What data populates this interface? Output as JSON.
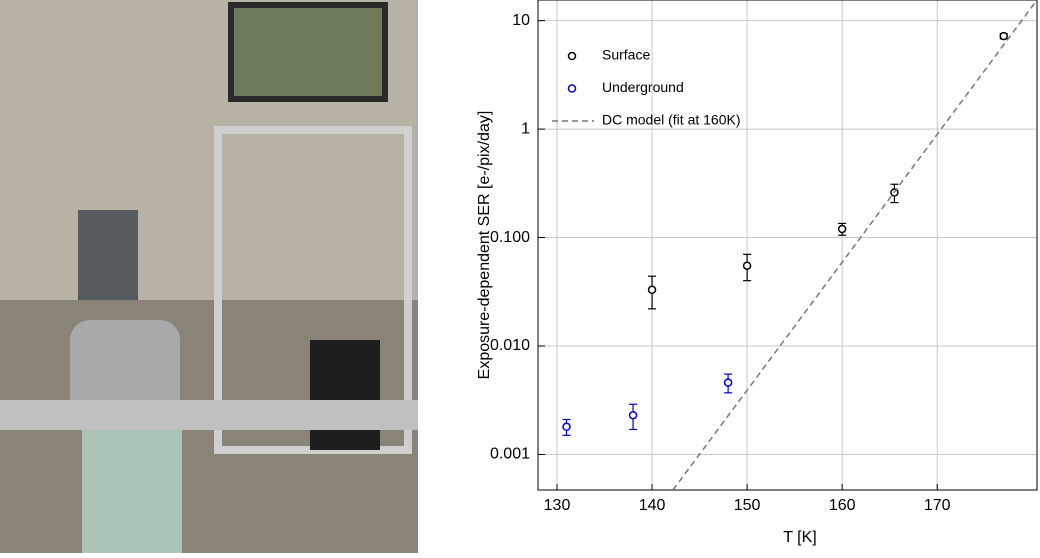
{
  "chart_data": {
    "type": "scatter",
    "y_label": "Exposure-dependent SER [e-/pix/day]",
    "x_label": "T [K]",
    "log_y": true,
    "grid": true,
    "legend": "upper left",
    "xlim": [
      128,
      180.5
    ],
    "xticks": [
      130,
      140,
      150,
      160,
      170
    ],
    "ylim": [
      0.00047,
      15.5
    ],
    "yticks": [
      0.001,
      {
        "value": 0.01,
        "label": "0.010"
      },
      {
        "value": 0.1,
        "label": "0.100"
      },
      1,
      10
    ],
    "series": [
      {
        "name": "Surface",
        "color": "#000000",
        "kind": "points",
        "x": [
          140,
          150,
          160,
          165.5,
          177
        ],
        "values": [
          0.033,
          0.055,
          0.12,
          0.26,
          7.2
        ],
        "errors": [
          0.011,
          0.015,
          0.015,
          0.05,
          0.4
        ]
      },
      {
        "name": "Underground",
        "color": "#0000cc",
        "kind": "points",
        "x": [
          131,
          138,
          148
        ],
        "values": [
          0.0018,
          0.0023,
          0.0046
        ],
        "errors": [
          0.0003,
          0.0006,
          0.0009
        ]
      },
      {
        "name": "DC model (fit at 160K)",
        "color": "#777777",
        "kind": "dashed-line",
        "x": [
          142.2,
          180.5
        ],
        "values": [
          0.00047,
          15.5
        ]
      }
    ]
  }
}
